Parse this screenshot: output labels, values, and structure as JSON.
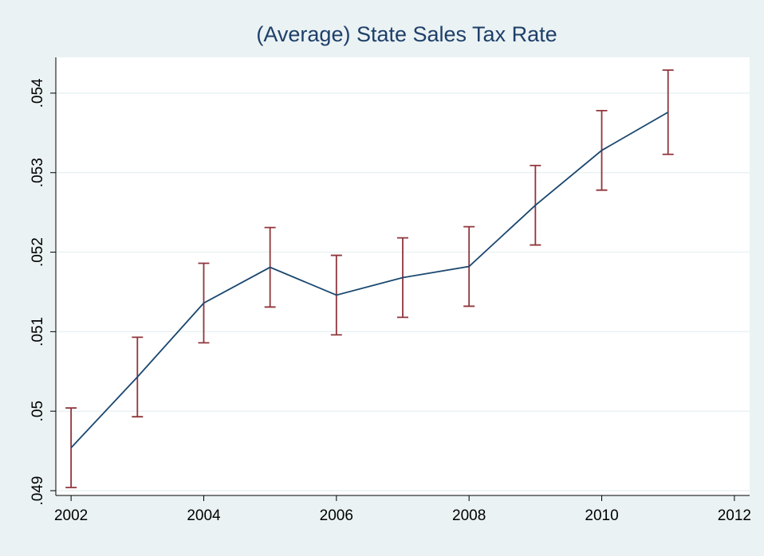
{
  "chart_data": {
    "type": "line",
    "title": "(Average) State Sales Tax Rate",
    "x": [
      2002,
      2003,
      2004,
      2005,
      2006,
      2007,
      2008,
      2009,
      2010,
      2011
    ],
    "series": [
      {
        "color": "#1a476f",
        "error_color": "#90353b",
        "values": [
          0.04954,
          0.05043,
          0.05136,
          0.05181,
          0.05146,
          0.05168,
          0.05182,
          0.05259,
          0.05328,
          0.05376
        ],
        "errors": [
          0.0005,
          0.0005,
          0.0005,
          0.0005,
          0.0005,
          0.0005,
          0.0005,
          0.0005,
          0.0005,
          0.00053
        ]
      }
    ],
    "xlim": [
      2001.77,
      2012.23
    ],
    "xticks": [
      2002,
      2004,
      2006,
      2008,
      2010,
      2012
    ],
    "ylim": [
      0.04894,
      0.05445
    ],
    "yticks": [
      {
        "value": 0.049,
        "label": ".049"
      },
      {
        "value": 0.05,
        "label": ".05"
      },
      {
        "value": 0.051,
        "label": ".051"
      },
      {
        "value": 0.052,
        "label": ".052"
      },
      {
        "value": 0.053,
        "label": ".053"
      },
      {
        "value": 0.054,
        "label": ".054"
      }
    ],
    "grid": true
  }
}
